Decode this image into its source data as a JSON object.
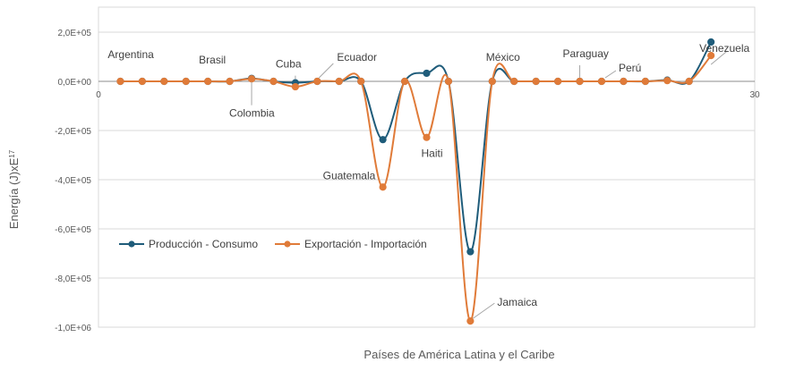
{
  "chart_data": {
    "type": "line",
    "title": "",
    "xlabel": "Países de América Latina y el Caribe",
    "ylabel_base": "Energía (J)xE",
    "ylabel_exp": "17",
    "xlim": [
      0,
      30
    ],
    "ylim": [
      -1000000,
      300000
    ],
    "y_ticks": [
      200000,
      0,
      -200000,
      -400000,
      -600000,
      -800000,
      -1000000
    ],
    "y_tick_labels": [
      "2,0E+05",
      "0,0E+00",
      "-2,0E+05",
      "-4,0E+05",
      "-6,0E+05",
      "-8,0E+05",
      "-1,0E+06"
    ],
    "x_tick_labels": [
      {
        "x": 0,
        "label": "0"
      },
      {
        "x": 30,
        "label": "30"
      }
    ],
    "grid": true,
    "legend_position": "lower-left",
    "x": [
      1,
      2,
      3,
      4,
      5,
      6,
      7,
      8,
      9,
      10,
      11,
      12,
      13,
      14,
      15,
      16,
      17,
      18,
      19,
      20,
      21,
      22,
      23,
      24,
      25,
      26,
      27,
      28
    ],
    "series": [
      {
        "name": "Producción - Consumo",
        "color": "#1f5c7a",
        "values": [
          0,
          0,
          0,
          0,
          0,
          0,
          12000,
          0,
          -6000,
          0,
          0,
          0,
          -237000,
          0,
          33000,
          0,
          -693000,
          0,
          0,
          0,
          0,
          0,
          0,
          0,
          0,
          5000,
          0,
          160000
        ]
      },
      {
        "name": "Exportación - Importación",
        "color": "#e07b39",
        "values": [
          0,
          0,
          0,
          0,
          0,
          0,
          10000,
          0,
          -22000,
          0,
          0,
          0,
          -430000,
          0,
          -228000,
          0,
          -975000,
          0,
          0,
          0,
          0,
          0,
          0,
          0,
          0,
          3000,
          0,
          105000
        ]
      }
    ],
    "annotations": [
      {
        "text": "Argentina",
        "x": 1
      },
      {
        "text": "Brasil",
        "x": 5
      },
      {
        "text": "Colombia",
        "x": 7
      },
      {
        "text": "Cuba",
        "x": 9
      },
      {
        "text": "Ecuador",
        "x": 10
      },
      {
        "text": "Guatemala",
        "x": 13
      },
      {
        "text": "Haiti",
        "x": 15
      },
      {
        "text": "Jamaica",
        "x": 17
      },
      {
        "text": "México",
        "x": 18
      },
      {
        "text": "Paraguay",
        "x": 22
      },
      {
        "text": "Perú",
        "x": 23
      },
      {
        "text": "Venezuela",
        "x": 28
      }
    ]
  }
}
